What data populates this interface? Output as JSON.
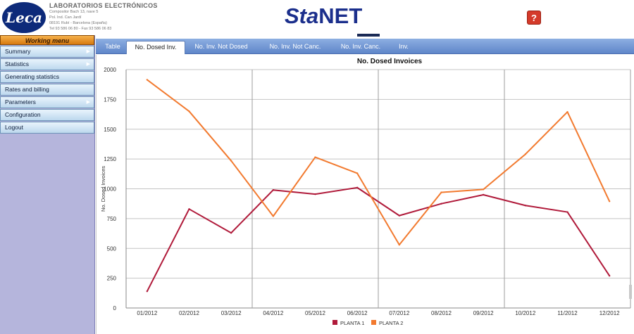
{
  "header": {
    "logo_text": "Leca",
    "company_name": "LABORATORIOS ELECTRÓNICOS",
    "company_lines": [
      "Compositor Bach 13, nave 5",
      "Pol. Ind. Can Jardí",
      "08191 Rubí - Barcelona (España)",
      "Tel 93 586 06 80 - Fax 93 586 06 83"
    ],
    "app_title_prefix": "Sta",
    "app_title_suffix": "NET",
    "help_label": "?"
  },
  "sidebar": {
    "title": "Working menu",
    "items": [
      {
        "label": "Summary",
        "has_submenu": true
      },
      {
        "label": "Statistics",
        "has_submenu": true
      },
      {
        "label": "Generating statistics",
        "has_submenu": false
      },
      {
        "label": "Rates and billing",
        "has_submenu": false
      },
      {
        "label": "Parameters",
        "has_submenu": true
      },
      {
        "label": "Configuration",
        "has_submenu": false
      },
      {
        "label": "Logout",
        "has_submenu": false
      }
    ]
  },
  "tabs": [
    {
      "label": "Table",
      "active": false
    },
    {
      "label": "No. Dosed Inv.",
      "active": true
    },
    {
      "label": "No. Inv. Not Dosed",
      "active": false
    },
    {
      "label": "No. Inv. Not Canc.",
      "active": false
    },
    {
      "label": "No. Inv. Canc.",
      "active": false
    },
    {
      "label": "Inv.",
      "active": false
    }
  ],
  "colors": {
    "planta1": "#b01a3a",
    "planta2": "#f27a2f",
    "tab_bar": "#6e93d3",
    "grid": "#bdbdbd"
  },
  "chart_data": {
    "type": "line",
    "title": "No. Dosed Invoices",
    "xlabel": "",
    "ylabel": "No. Dosed Invoices",
    "categories": [
      "01/2012",
      "02/2012",
      "03/2012",
      "04/2012",
      "05/2012",
      "06/2012",
      "07/2012",
      "08/2012",
      "09/2012",
      "10/2012",
      "11/2012",
      "12/2012"
    ],
    "ylim": [
      0,
      2000
    ],
    "yticks": [
      0,
      250,
      500,
      750,
      1000,
      1250,
      1500,
      1750,
      2000
    ],
    "grid": true,
    "legend_position": "bottom",
    "series": [
      {
        "name": "PLANTA 1",
        "color": "#b01a3a",
        "values": [
          140,
          830,
          630,
          990,
          955,
          1010,
          775,
          875,
          950,
          860,
          805,
          270
        ]
      },
      {
        "name": "PLANTA 2",
        "color": "#f27a2f",
        "values": [
          1915,
          1650,
          1235,
          770,
          1265,
          1130,
          530,
          970,
          995,
          1290,
          1645,
          895
        ]
      }
    ]
  }
}
